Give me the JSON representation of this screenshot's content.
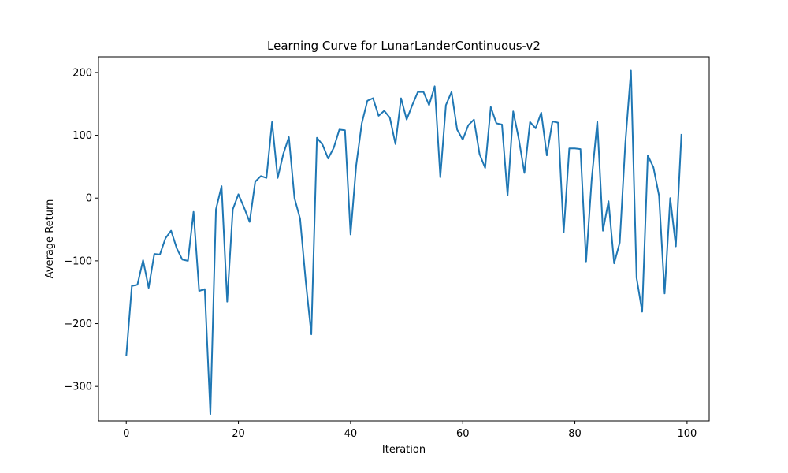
{
  "chart_data": {
    "type": "line",
    "title": "Learning Curve for LunarLanderContinuous-v2",
    "xlabel": "Iteration",
    "ylabel": "Average Return",
    "xlim": [
      -4.95,
      103.95
    ],
    "ylim": [
      -355,
      225
    ],
    "xticks": [
      0,
      20,
      40,
      60,
      80,
      100
    ],
    "yticks": [
      -300,
      -200,
      -100,
      0,
      100,
      200
    ],
    "xtick_labels": [
      "0",
      "20",
      "40",
      "60",
      "80",
      "100"
    ],
    "ytick_labels": [
      "−300",
      "−200",
      "−100",
      "0",
      "100",
      "200"
    ],
    "grid": false,
    "legend": "none",
    "line_color": "#1f77b4",
    "series": [
      {
        "x": [
          0,
          1,
          2,
          3,
          4,
          5,
          6,
          7,
          8,
          9,
          10,
          11,
          12,
          13,
          14,
          15,
          16,
          17,
          18,
          19,
          20,
          21,
          22,
          23,
          24,
          25,
          26,
          27,
          28,
          29,
          30,
          31,
          32,
          33,
          34,
          35,
          36,
          37,
          38,
          39,
          40,
          41,
          42,
          43,
          44,
          45,
          46,
          47,
          48,
          49,
          50,
          51,
          52,
          53,
          54,
          55,
          56,
          57,
          58,
          59,
          60,
          61,
          62,
          63,
          64,
          65,
          66,
          67,
          68,
          69,
          70,
          71,
          72,
          73,
          74,
          75,
          76,
          77,
          78,
          79,
          80,
          81,
          82,
          83,
          84,
          85,
          86,
          87,
          88,
          89,
          90,
          91,
          92,
          93,
          94,
          95,
          96,
          97,
          98,
          99
        ],
        "values": [
          -252,
          -140,
          -138,
          -99,
          -143,
          -89,
          -90,
          -64,
          -52,
          -80,
          -98,
          -100,
          -22,
          -148,
          -145,
          -344,
          -18,
          19,
          -165,
          -18,
          6,
          -15,
          -38,
          26,
          35,
          32,
          121,
          32,
          70,
          97,
          0,
          -33,
          -132,
          -217,
          96,
          85,
          63,
          80,
          109,
          108,
          -58,
          52,
          119,
          155,
          159,
          131,
          139,
          128,
          86,
          159,
          125,
          148,
          169,
          169,
          148,
          178,
          33,
          148,
          169,
          109,
          93,
          116,
          125,
          70,
          48,
          145,
          119,
          117,
          4,
          138,
          94,
          40,
          121,
          111,
          136,
          68,
          122,
          120,
          -55,
          79,
          79,
          78,
          -101,
          30,
          122,
          -52,
          -5,
          -104,
          -71,
          88,
          203,
          -127,
          -181,
          68,
          49,
          4,
          -152,
          0,
          -77,
          102
        ]
      }
    ]
  }
}
